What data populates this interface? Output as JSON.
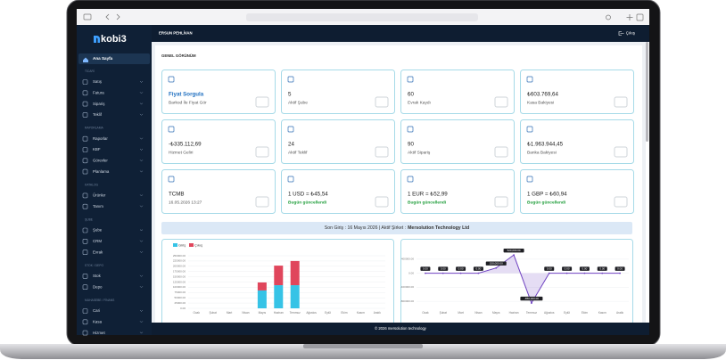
{
  "header": {
    "user": "ERSUN PEHLİVAN",
    "logout": "Çıkış"
  },
  "sidebar": {
    "logo": "kobi3",
    "home": "Ana Sayfa",
    "sections": [
      {
        "title": "TİCARİ",
        "items": [
          "Satış",
          "Fatura",
          "Sipariş",
          "Teklif"
        ]
      },
      {
        "title": "RAPORLAMA",
        "items": [
          "Raporlar",
          "KBF",
          "Görevler",
          "Planlama"
        ]
      },
      {
        "title": "KATALOG",
        "items": [
          "Ürünler",
          "Tanım"
        ]
      },
      {
        "title": "ŞUBE",
        "items": [
          "Şube",
          "CRM",
          "Evrak"
        ]
      },
      {
        "title": "STOK / DEPO",
        "items": [
          "Stok",
          "Depo"
        ]
      },
      {
        "title": "MUHASEBE / FİNANS",
        "items": [
          "Cari",
          "Kasa",
          "Hizmet"
        ]
      }
    ]
  },
  "page_title": "GENEL GÖRÜNÜM",
  "cards": [
    {
      "value": "Fiyat Sorgula",
      "label": "Barkod İle Fiyat Gör"
    },
    {
      "value": "5",
      "label": "Aktif Şube"
    },
    {
      "value": "60",
      "label": "Evrak Kaydı"
    },
    {
      "value": "₺603.769,64",
      "label": "Kasa Bakiyesi"
    },
    {
      "value": "-₺335.112,69",
      "label": "Hizmet Geliri"
    },
    {
      "value": "24",
      "label": "Aktif Teklif"
    },
    {
      "value": "90",
      "label": "Aktif Sipariş"
    },
    {
      "value": "₺1.963.944,45",
      "label": "Banka Bakiyesi"
    },
    {
      "value": "TCMB",
      "label": "16.05.2026 13:27"
    },
    {
      "value": "1 USD = ₺45,54",
      "label": "Bugün güncellendi"
    },
    {
      "value": "1 EUR = ₺52,99",
      "label": "Bugün güncellendi"
    },
    {
      "value": "1 GBP = ₺60,94",
      "label": "Bugün güncellendi"
    }
  ],
  "banner": {
    "text": "Son Giriş : 16 Mayıs 2026 | Aktif Şirket :",
    "company": "Mersolution Technology Ltd"
  },
  "chart_data": [
    {
      "type": "bar",
      "stacked": true,
      "grid": true,
      "categories": [
        "Ocak",
        "Şubat",
        "Mart",
        "Nisan",
        "Mayıs",
        "Haziran",
        "Temmuz",
        "Ağustos",
        "Eylül",
        "Ekim",
        "Kasım",
        "Aralık"
      ],
      "series": [
        {
          "name": "Giriş",
          "color": "#36c3e6",
          "values": [
            0,
            0,
            0,
            0,
            85000,
            110000,
            110000,
            0,
            0,
            0,
            0,
            0
          ]
        },
        {
          "name": "Çıkış",
          "color": "#e0465c",
          "values": [
            0,
            0,
            0,
            0,
            38000,
            93000,
            115000,
            0,
            0,
            0,
            0,
            0
          ]
        }
      ],
      "ylim": [
        0,
        250000
      ],
      "yticks": [
        {
          "value": 0,
          "label": "0.00"
        },
        {
          "value": 25000,
          "label": "25000.00"
        },
        {
          "value": 50000,
          "label": "50000.00"
        },
        {
          "value": 75000,
          "label": "75000.00"
        },
        {
          "value": 100000,
          "label": "100000.00"
        },
        {
          "value": 125000,
          "label": "125000.00"
        },
        {
          "value": 150000,
          "label": "150000.00"
        },
        {
          "value": 175000,
          "label": "175000.00"
        },
        {
          "value": 200000,
          "label": "200000.00"
        },
        {
          "value": 225000,
          "label": "225000.00"
        },
        {
          "value": 250000,
          "label": "250000.00"
        }
      ]
    },
    {
      "type": "line",
      "grid": true,
      "color": "#6f42c1",
      "categories": [
        "Ocak",
        "Şubat",
        "Mart",
        "Nisan",
        "Mayıs",
        "Haziran",
        "Temmuz",
        "Ağustos",
        "Eylül",
        "Ekim",
        "Kasım",
        "Aralık"
      ],
      "values": [
        0,
        0,
        0,
        0,
        150000,
        520000,
        -850000,
        0,
        0,
        0,
        0,
        0
      ],
      "value_labels": [
        "0.00",
        "0.00",
        "0.00",
        "0.00",
        "150,000.00",
        "520,000.00",
        "-850,000.00",
        "0.00",
        "0.00",
        "0.00",
        "0.00",
        "0.00"
      ],
      "ylim": [
        -1000000,
        600000
      ],
      "yticks": [
        {
          "value": 400000,
          "label": "400000.00"
        },
        {
          "value": 0,
          "label": "0.00"
        },
        {
          "value": -400000,
          "label": "-400000.00"
        },
        {
          "value": -800000,
          "label": "-800000.00"
        }
      ]
    }
  ],
  "footer": "© 2026 mersolution technology"
}
